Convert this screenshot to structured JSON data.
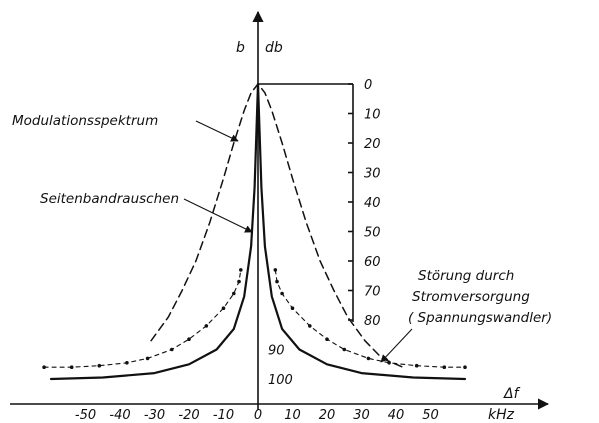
{
  "chart_data": {
    "type": "line",
    "title": "",
    "xlabel": "Δf",
    "xunit": "kHz",
    "yunit_left": "b",
    "yunit_right": "db",
    "xlim": [
      -60,
      60
    ],
    "ylim": [
      0,
      100
    ],
    "y_inverted": true,
    "grid": false,
    "x_ticks": [
      -50,
      -40,
      -30,
      -20,
      -10,
      0,
      10,
      20,
      30,
      40,
      50
    ],
    "x_tick_labels": [
      "-50",
      "-40",
      "-30",
      "-20",
      "-10",
      "0",
      "10",
      "20",
      "30",
      "40",
      "50"
    ],
    "y_ticks_right": [
      0,
      10,
      20,
      30,
      40,
      50,
      60,
      70,
      80
    ],
    "y_tick_labels_right": [
      "0",
      "10",
      "20",
      "30",
      "40",
      "50",
      "60",
      "70",
      "80"
    ],
    "y_ticks_left": [
      90,
      100
    ],
    "y_tick_labels_left": [
      "90",
      "100"
    ],
    "series": [
      {
        "name": "Modulationsspektrum",
        "style": "dashed",
        "x": [
          -31,
          -26,
          -22,
          -18,
          -14,
          -10,
          -7,
          -4,
          -2,
          0,
          2,
          4,
          7,
          10,
          14,
          18,
          22,
          26,
          31,
          36,
          42
        ],
        "y": [
          87,
          79,
          70,
          60,
          47,
          32,
          20,
          9,
          3,
          0,
          3,
          9,
          20,
          32,
          47,
          60,
          70,
          79,
          87,
          93,
          96
        ]
      },
      {
        "name": "Seitenbandrauschen",
        "style": "solid",
        "x": [
          -60,
          -45,
          -30,
          -20,
          -12,
          -7,
          -4,
          -2,
          -1,
          0,
          1,
          2,
          4,
          7,
          12,
          20,
          30,
          45,
          60
        ],
        "y": [
          100,
          99.5,
          98,
          95,
          90,
          83,
          72,
          55,
          35,
          0,
          35,
          55,
          72,
          83,
          90,
          95,
          98,
          99.5,
          100
        ]
      },
      {
        "name": "Störung durch Stromversorgung (Spannungswandler)",
        "style": "dotted",
        "x": [
          -62,
          -54,
          -46,
          -38,
          -32,
          -25,
          -20,
          -15,
          -10,
          -7,
          -5.5,
          -5,
          null,
          5,
          5.5,
          7,
          10,
          15,
          20,
          25,
          32,
          38,
          46,
          54,
          60
        ],
        "y": [
          96,
          96,
          95.5,
          94.5,
          93,
          90,
          86.5,
          82,
          76,
          71,
          67,
          63,
          null,
          63,
          67,
          71,
          76,
          82,
          86.5,
          90,
          93,
          94.5,
          95.5,
          96,
          96
        ]
      }
    ],
    "annotations": [
      {
        "text": "Modulationsspektrum"
      },
      {
        "text": "Seitenbandrauschen"
      },
      {
        "text": "Störung durch"
      },
      {
        "text": "Stromversorgung"
      },
      {
        "text": "( Spannungswandler)"
      }
    ]
  }
}
